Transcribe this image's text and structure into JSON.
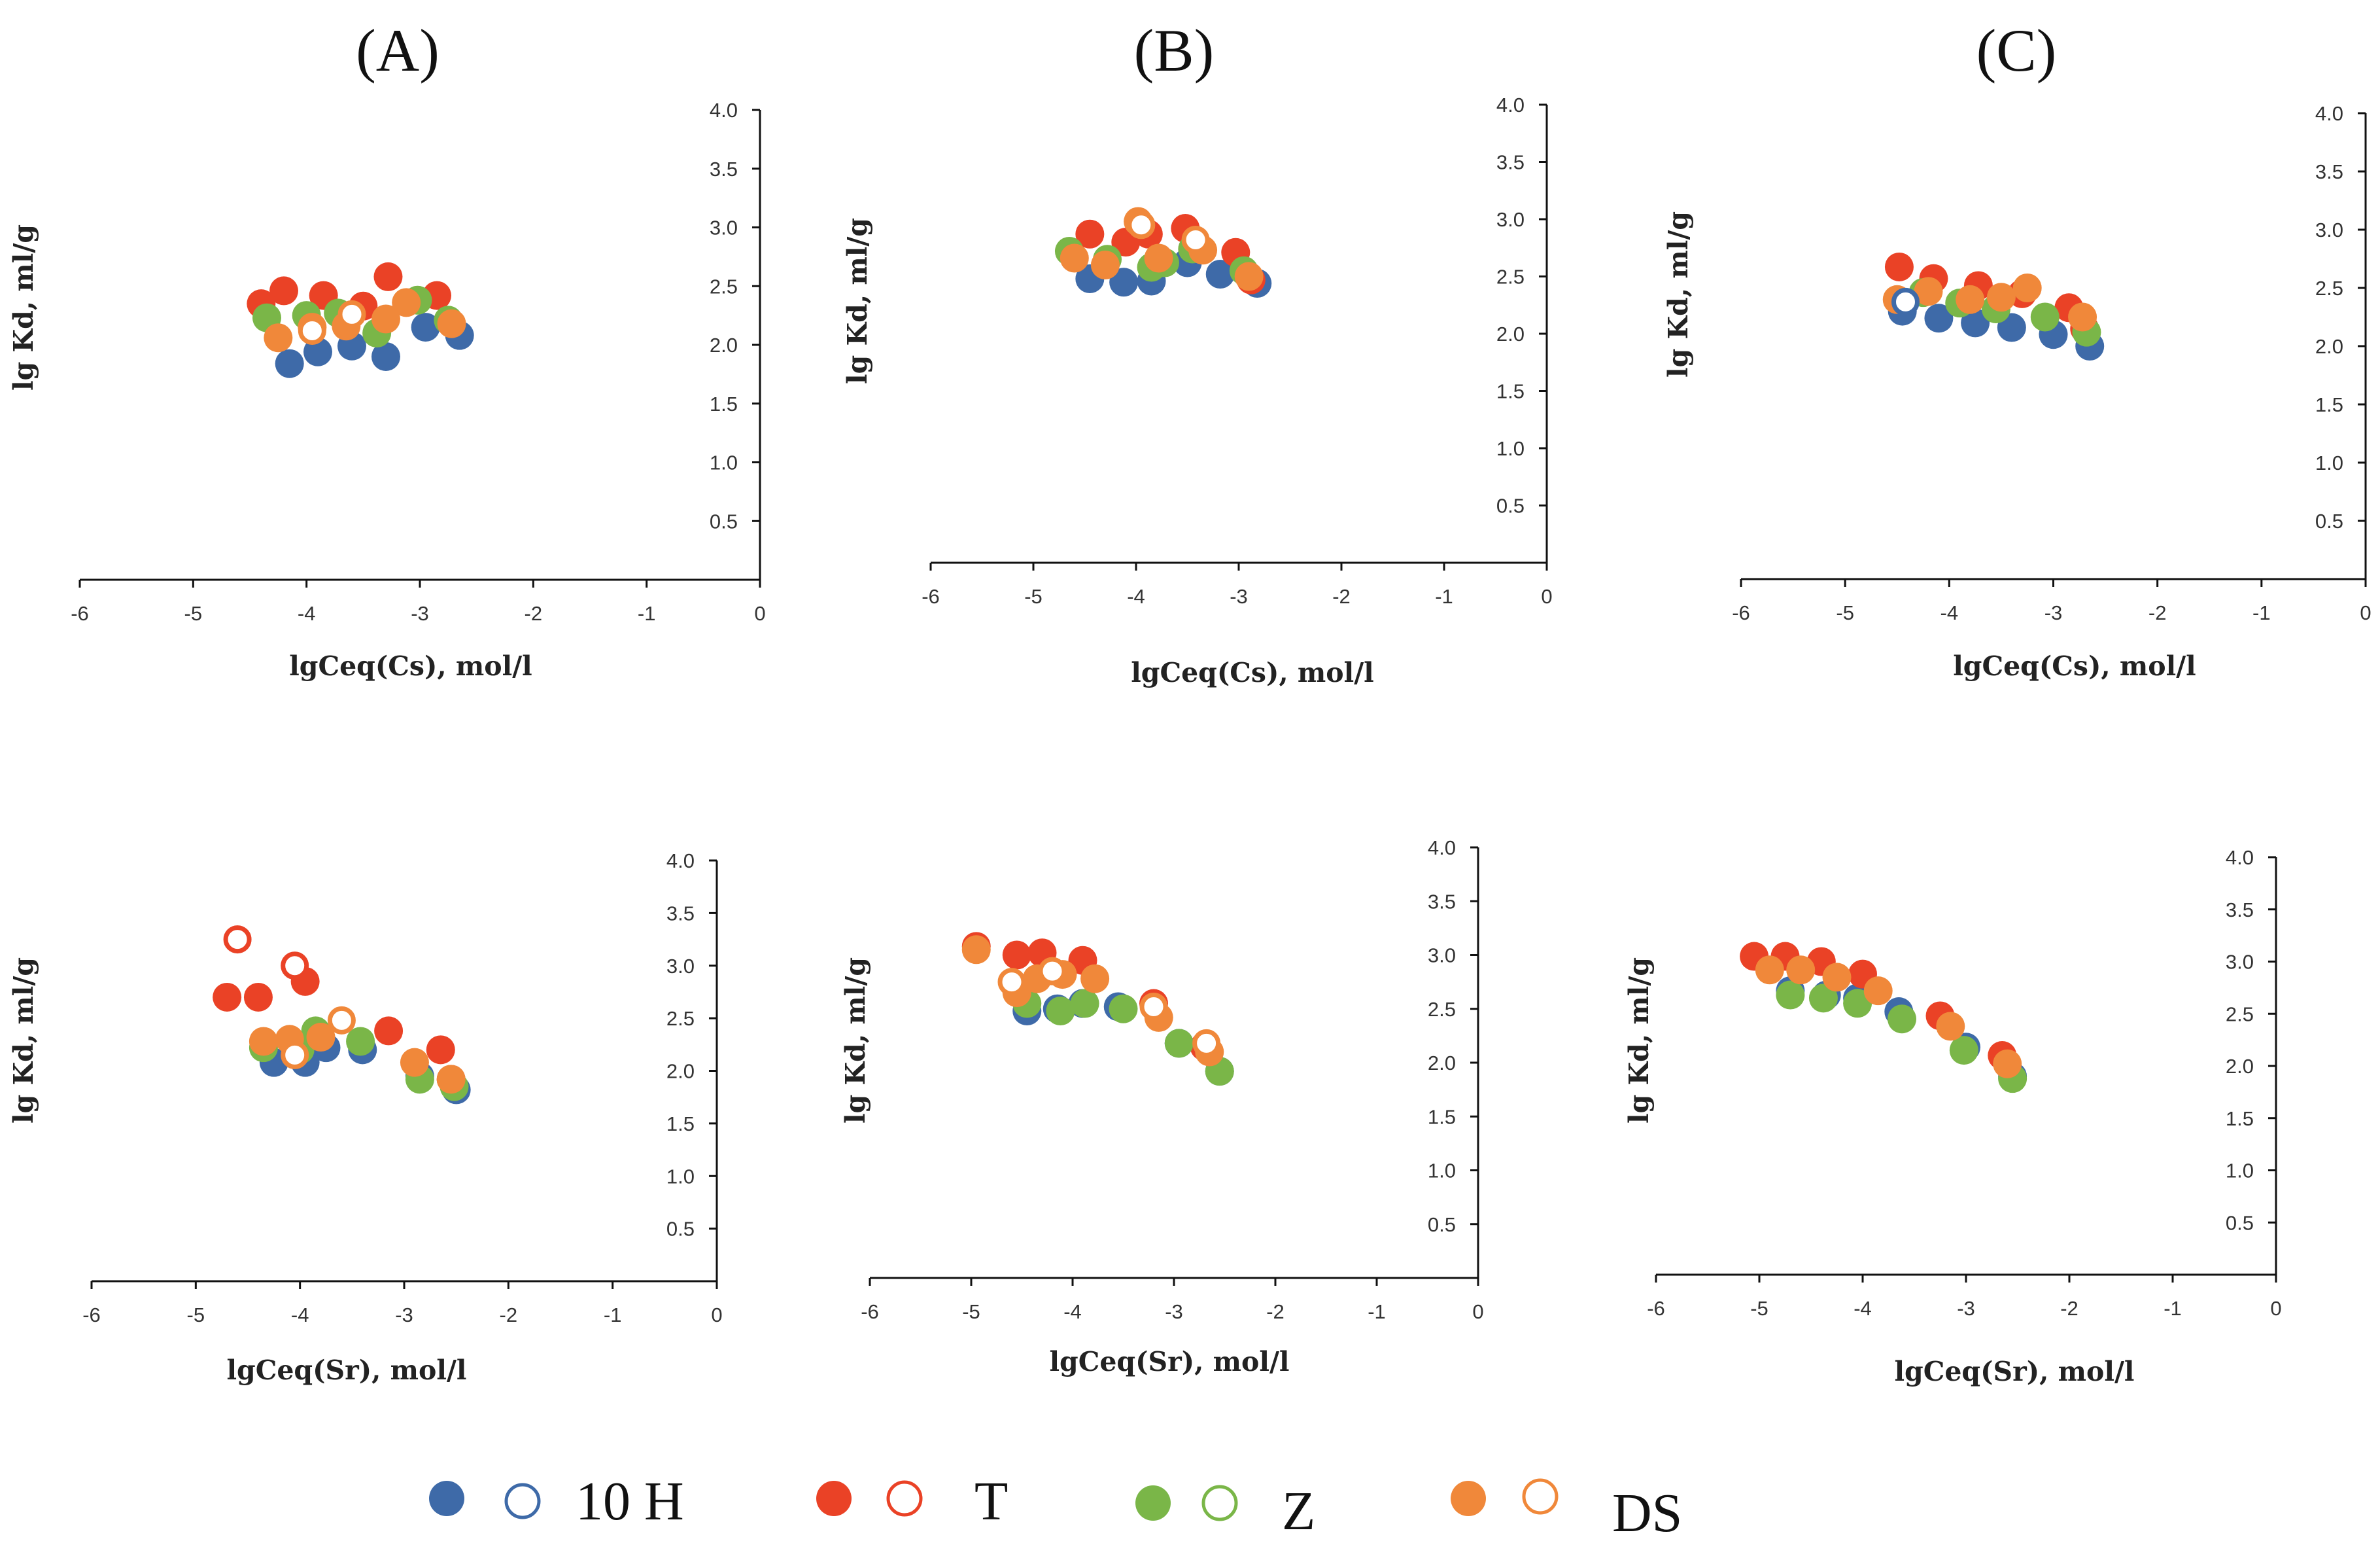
{
  "colors": {
    "10 H": "#3e6aa8",
    "T": "#ea4226",
    "Z": "#7ab648",
    "DS": "#f0883a"
  },
  "legend": [
    "10 H",
    "T",
    "Z",
    "DS"
  ],
  "chart_data": [
    {
      "type": "scatter",
      "title": "(A)",
      "xlabel": "lgCeq(Cs), mol/l",
      "ylabel": "lg Kd, ml/g",
      "xlim": [
        -6,
        0
      ],
      "ylim": [
        0,
        4
      ],
      "xticks": [
        "-6",
        "-5",
        "-4",
        "-3",
        "-2",
        "-1",
        "0"
      ],
      "yticks": [
        "0.5",
        "1.0",
        "1.5",
        "2.0",
        "2.5",
        "3.0",
        "3.5",
        "4.0"
      ],
      "series": [
        {
          "name": "10 H",
          "filled": true,
          "points": [
            [
              -4.15,
              1.84
            ],
            [
              -3.9,
              1.94
            ],
            [
              -3.6,
              1.99
            ],
            [
              -3.3,
              1.9
            ],
            [
              -2.95,
              2.15
            ],
            [
              -2.65,
              2.08
            ]
          ]
        },
        {
          "name": "T",
          "filled": true,
          "points": [
            [
              -4.4,
              2.35
            ],
            [
              -4.2,
              2.46
            ],
            [
              -3.85,
              2.42
            ],
            [
              -3.5,
              2.33
            ],
            [
              -3.28,
              2.58
            ],
            [
              -2.85,
              2.42
            ]
          ]
        },
        {
          "name": "Z",
          "filled": true,
          "points": [
            [
              -4.35,
              2.23
            ],
            [
              -4.0,
              2.25
            ],
            [
              -3.72,
              2.27
            ],
            [
              -3.38,
              2.1
            ],
            [
              -3.02,
              2.38
            ],
            [
              -2.75,
              2.21
            ]
          ]
        },
        {
          "name": "DS",
          "filled": true,
          "points": [
            [
              -4.25,
              2.06
            ],
            [
              -3.95,
              2.15
            ],
            [
              -3.65,
              2.16
            ],
            [
              -3.3,
              2.22
            ],
            [
              -3.12,
              2.36
            ],
            [
              -2.72,
              2.18
            ]
          ]
        },
        {
          "name": "DS",
          "filled": false,
          "points": [
            [
              -3.95,
              2.12
            ],
            [
              -3.6,
              2.26
            ]
          ]
        }
      ]
    },
    {
      "type": "scatter",
      "title": "(B)",
      "xlabel": "lgCeq(Cs), mol/l",
      "ylabel": "lg Kd, ml/g",
      "xlim": [
        -6,
        0
      ],
      "ylim": [
        0,
        4
      ],
      "xticks": [
        "-6",
        "-5",
        "-4",
        "-3",
        "-2",
        "-1",
        "0"
      ],
      "yticks": [
        "0.5",
        "1.0",
        "1.5",
        "2.0",
        "2.5",
        "3.0",
        "3.5",
        "4.0"
      ],
      "series": [
        {
          "name": "10 H",
          "filled": true,
          "points": [
            [
              -4.45,
              2.48
            ],
            [
              -4.12,
              2.45
            ],
            [
              -3.85,
              2.46
            ],
            [
              -3.5,
              2.62
            ],
            [
              -3.18,
              2.52
            ],
            [
              -2.82,
              2.44
            ]
          ]
        },
        {
          "name": "T",
          "filled": true,
          "points": [
            [
              -4.45,
              2.87
            ],
            [
              -4.1,
              2.8
            ],
            [
              -3.88,
              2.87
            ],
            [
              -3.52,
              2.92
            ],
            [
              -3.03,
              2.71
            ],
            [
              -2.88,
              2.47
            ]
          ]
        },
        {
          "name": "Z",
          "filled": true,
          "points": [
            [
              -4.65,
              2.72
            ],
            [
              -4.28,
              2.65
            ],
            [
              -3.85,
              2.58
            ],
            [
              -3.72,
              2.62
            ],
            [
              -3.45,
              2.74
            ],
            [
              -2.95,
              2.55
            ]
          ]
        },
        {
          "name": "DS",
          "filled": true,
          "points": [
            [
              -4.6,
              2.66
            ],
            [
              -4.3,
              2.6
            ],
            [
              -3.98,
              2.98
            ],
            [
              -3.78,
              2.66
            ],
            [
              -3.35,
              2.73
            ],
            [
              -2.9,
              2.5
            ]
          ]
        },
        {
          "name": "DS",
          "filled": false,
          "points": [
            [
              -3.95,
              2.95
            ],
            [
              -3.42,
              2.82
            ]
          ]
        }
      ]
    },
    {
      "type": "scatter",
      "title": "(C)",
      "xlabel": "lgCeq(Cs), mol/l",
      "ylabel": "lg Kd, ml/g",
      "xlim": [
        -6,
        0
      ],
      "ylim": [
        0,
        4
      ],
      "xticks": [
        "-6",
        "-5",
        "-4",
        "-3",
        "-2",
        "-1",
        "0"
      ],
      "yticks": [
        "0.5",
        "1.0",
        "1.5",
        "2.0",
        "2.5",
        "3.0",
        "3.5",
        "4.0"
      ],
      "series": [
        {
          "name": "10 H",
          "filled": true,
          "points": [
            [
              -4.45,
              2.3
            ],
            [
              -4.1,
              2.24
            ],
            [
              -3.75,
              2.2
            ],
            [
              -3.4,
              2.16
            ],
            [
              -3.0,
              2.1
            ],
            [
              -2.65,
              2.0
            ]
          ]
        },
        {
          "name": "T",
          "filled": true,
          "points": [
            [
              -4.48,
              2.68
            ],
            [
              -4.15,
              2.58
            ],
            [
              -3.72,
              2.52
            ],
            [
              -3.3,
              2.45
            ],
            [
              -2.85,
              2.33
            ],
            [
              -2.7,
              2.15
            ]
          ]
        },
        {
          "name": "Z",
          "filled": true,
          "points": [
            [
              -4.25,
              2.46
            ],
            [
              -3.9,
              2.37
            ],
            [
              -3.55,
              2.32
            ],
            [
              -3.08,
              2.25
            ],
            [
              -2.68,
              2.12
            ]
          ]
        },
        {
          "name": "DS",
          "filled": true,
          "points": [
            [
              -4.5,
              2.4
            ],
            [
              -4.2,
              2.47
            ],
            [
              -3.8,
              2.4
            ],
            [
              -3.5,
              2.42
            ],
            [
              -3.25,
              2.5
            ],
            [
              -2.72,
              2.25
            ]
          ]
        },
        {
          "name": "10 H",
          "filled": false,
          "points": [
            [
              -4.42,
              2.38
            ]
          ]
        }
      ]
    },
    {
      "type": "scatter",
      "title": "",
      "xlabel": "lgCeq(Sr), mol/l",
      "ylabel": "lg Kd, ml/g",
      "xlim": [
        -6,
        0
      ],
      "ylim": [
        0,
        4
      ],
      "xticks": [
        "-6",
        "-5",
        "-4",
        "-3",
        "-2",
        "-1",
        "0"
      ],
      "yticks": [
        "0.5",
        "1.0",
        "1.5",
        "2.0",
        "2.5",
        "3.0",
        "3.5",
        "4.0"
      ],
      "series": [
        {
          "name": "10 H",
          "filled": true,
          "points": [
            [
              -4.25,
              2.08
            ],
            [
              -3.95,
              2.08
            ],
            [
              -3.75,
              2.22
            ],
            [
              -3.4,
              2.2
            ],
            [
              -2.85,
              1.95
            ],
            [
              -2.5,
              1.82
            ]
          ]
        },
        {
          "name": "T",
          "filled": true,
          "points": [
            [
              -4.7,
              2.7
            ],
            [
              -4.4,
              2.7
            ],
            [
              -3.95,
              2.85
            ],
            [
              -3.15,
              2.38
            ],
            [
              -2.65,
              2.2
            ],
            [
              -2.55,
              1.92
            ]
          ]
        },
        {
          "name": "Z",
          "filled": true,
          "points": [
            [
              -4.35,
              2.22
            ],
            [
              -4.0,
              2.2
            ],
            [
              -3.85,
              2.38
            ],
            [
              -3.42,
              2.28
            ],
            [
              -2.85,
              1.92
            ],
            [
              -2.52,
              1.85
            ]
          ]
        },
        {
          "name": "DS",
          "filled": true,
          "points": [
            [
              -4.35,
              2.28
            ],
            [
              -4.1,
              2.3
            ],
            [
              -3.8,
              2.32
            ],
            [
              -2.9,
              2.08
            ],
            [
              -2.55,
              1.92
            ]
          ]
        },
        {
          "name": "T",
          "filled": false,
          "points": [
            [
              -4.6,
              3.25
            ],
            [
              -4.05,
              3.0
            ]
          ]
        },
        {
          "name": "DS",
          "filled": false,
          "points": [
            [
              -4.05,
              2.15
            ],
            [
              -3.6,
              2.48
            ]
          ]
        }
      ]
    },
    {
      "type": "scatter",
      "title": "",
      "xlabel": "lgCeq(Sr), mol/l",
      "ylabel": "lg Kd, ml/g",
      "xlim": [
        -6,
        0
      ],
      "ylim": [
        0,
        4
      ],
      "xticks": [
        "-6",
        "-5",
        "-4",
        "-3",
        "-2",
        "-1",
        "0"
      ],
      "yticks": [
        "0.5",
        "1.0",
        "1.5",
        "2.0",
        "2.5",
        "3.0",
        "3.5",
        "4.0"
      ],
      "series": [
        {
          "name": "10 H",
          "filled": true,
          "points": [
            [
              -4.45,
              2.48
            ],
            [
              -4.15,
              2.5
            ],
            [
              -3.9,
              2.55
            ],
            [
              -3.55,
              2.52
            ],
            [
              -2.95,
              2.18
            ],
            [
              -2.55,
              1.92
            ]
          ]
        },
        {
          "name": "T",
          "filled": true,
          "points": [
            [
              -4.95,
              3.08
            ],
            [
              -4.55,
              3.0
            ],
            [
              -4.3,
              3.02
            ],
            [
              -3.9,
              2.95
            ],
            [
              -3.2,
              2.55
            ],
            [
              -2.7,
              2.15
            ]
          ]
        },
        {
          "name": "Z",
          "filled": true,
          "points": [
            [
              -4.45,
              2.55
            ],
            [
              -4.12,
              2.48
            ],
            [
              -3.88,
              2.55
            ],
            [
              -3.5,
              2.5
            ],
            [
              -2.95,
              2.18
            ],
            [
              -2.55,
              1.92
            ]
          ]
        },
        {
          "name": "DS",
          "filled": true,
          "points": [
            [
              -4.95,
              3.05
            ],
            [
              -4.55,
              2.65
            ],
            [
              -4.35,
              2.78
            ],
            [
              -4.1,
              2.82
            ],
            [
              -3.78,
              2.78
            ],
            [
              -3.15,
              2.42
            ],
            [
              -2.65,
              2.1
            ]
          ]
        },
        {
          "name": "DS",
          "filled": false,
          "points": [
            [
              -4.6,
              2.75
            ],
            [
              -4.2,
              2.85
            ],
            [
              -3.2,
              2.52
            ],
            [
              -2.68,
              2.18
            ]
          ]
        }
      ]
    },
    {
      "type": "scatter",
      "title": "",
      "xlabel": "lgCeq(Sr), mol/l",
      "ylabel": "lg Kd, ml/g",
      "xlim": [
        -6,
        0
      ],
      "ylim": [
        0,
        4
      ],
      "xticks": [
        "-6",
        "-5",
        "-4",
        "-3",
        "-2",
        "-1",
        "0"
      ],
      "yticks": [
        "0.5",
        "1.0",
        "1.5",
        "2.0",
        "2.5",
        "3.0",
        "3.5",
        "4.0"
      ],
      "series": [
        {
          "name": "10 H",
          "filled": true,
          "points": [
            [
              -4.7,
              2.72
            ],
            [
              -4.35,
              2.68
            ],
            [
              -4.05,
              2.65
            ],
            [
              -3.65,
              2.52
            ],
            [
              -3.0,
              2.18
            ],
            [
              -2.55,
              1.9
            ]
          ]
        },
        {
          "name": "T",
          "filled": true,
          "points": [
            [
              -5.05,
              3.05
            ],
            [
              -4.75,
              3.05
            ],
            [
              -4.4,
              3.0
            ],
            [
              -4.0,
              2.88
            ],
            [
              -3.25,
              2.48
            ],
            [
              -2.65,
              2.1
            ]
          ]
        },
        {
          "name": "Z",
          "filled": true,
          "points": [
            [
              -4.7,
              2.68
            ],
            [
              -4.38,
              2.65
            ],
            [
              -4.05,
              2.6
            ],
            [
              -3.62,
              2.45
            ],
            [
              -3.02,
              2.15
            ],
            [
              -2.55,
              1.88
            ]
          ]
        },
        {
          "name": "DS",
          "filled": true,
          "points": [
            [
              -4.9,
              2.92
            ],
            [
              -4.6,
              2.92
            ],
            [
              -4.25,
              2.85
            ],
            [
              -3.85,
              2.72
            ],
            [
              -3.15,
              2.38
            ],
            [
              -2.6,
              2.02
            ]
          ]
        }
      ]
    }
  ]
}
